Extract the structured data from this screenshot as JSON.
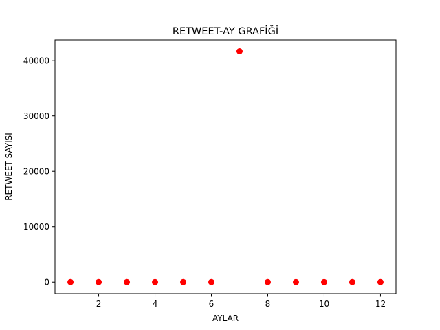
{
  "chart_data": {
    "type": "scatter",
    "title": "RETWEET-AY GRAFİĞİ",
    "xlabel": "AYLAR",
    "ylabel": "RETWEET SAYISI",
    "xlim": [
      0.45,
      12.55
    ],
    "ylim": [
      -2083,
      43750
    ],
    "xticks": [
      2,
      4,
      6,
      8,
      10,
      12
    ],
    "yticks": [
      0,
      10000,
      20000,
      30000,
      40000
    ],
    "grid": false,
    "legend": "none",
    "marker_color": "#ff0000",
    "series": [
      {
        "x": [
          1,
          2,
          3,
          4,
          5,
          6,
          7,
          8,
          9,
          10,
          11,
          12
        ],
        "y": [
          0,
          0,
          0,
          0,
          0,
          0,
          41700,
          0,
          0,
          0,
          0,
          0
        ]
      }
    ]
  }
}
